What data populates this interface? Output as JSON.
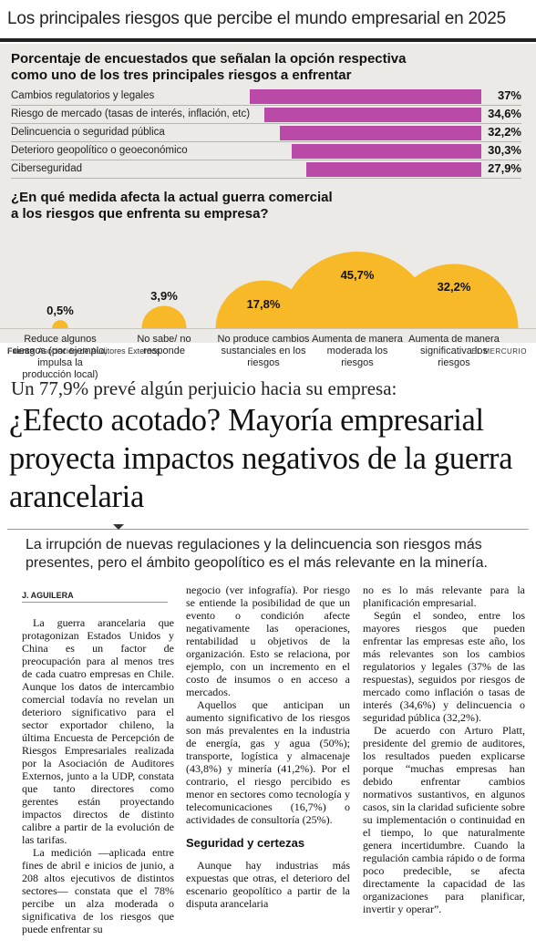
{
  "infographic": {
    "title": "Los principales riesgos que percibe el mundo empresarial en 2025",
    "bar_heading_line1": "Porcentaje de encuestados que señalan la opción respectiva",
    "bar_heading_line2": "como uno de los tres principales riesgos a enfrentar",
    "arc_heading_line1": "¿En qué medida afecta la actual guerra comercial",
    "arc_heading_line2": "a los riesgos que enfrenta su empresa?",
    "source_label": "Fuente",
    "source_text": "Asociación de Auditores Externos",
    "brand": "EL MERCURIO",
    "bar_color": "#b94aa8",
    "arc_color": "#f7b928"
  },
  "chart_data": [
    {
      "type": "bar",
      "orientation": "horizontal",
      "categories": [
        "Cambios regulatorios y legales",
        "Riesgo de mercado (tasas de interés, inflación, etc)",
        "Delincuencia o seguridad pública",
        "Deterioro geopolítico o geoeconómico",
        "Ciberseguridad"
      ],
      "values": [
        37,
        34.6,
        32.2,
        30.3,
        27.9
      ],
      "value_labels": [
        "37%",
        "34,6%",
        "32,2%",
        "30,3%",
        "27,9%"
      ]
    },
    {
      "type": "area",
      "shape": "semicircle",
      "categories": [
        "Reduce algunos riesgos (por ejemplo, impulsa la producción local)",
        "No sabe/ no responde",
        "No produce cambios sustanciales en los riesgos",
        "Aumenta de manera moderada los riesgos",
        "Aumenta de manera significativa los riesgos"
      ],
      "values": [
        0.5,
        3.9,
        17.8,
        45.7,
        32.2
      ],
      "value_labels": [
        "0,5%",
        "3,9%",
        "17,8%",
        "45,7%",
        "32,2%"
      ]
    }
  ],
  "article": {
    "kicker": "Un 77,9% prevé algún perjuicio hacia su empresa:",
    "headline": "¿Efecto acotado? Mayoría empresarial proyecta impactos negativos de la guerra arancelaria",
    "deck": "La irrupción de nuevas regulaciones y la delincuencia son riesgos más presentes, pero el ámbito geopolítico es el más relevante en la minería.",
    "byline": "J. AGUILERA",
    "col1": [
      "La guerra arancelaria que protagonizan Estados Unidos y China es un factor de preocupación para al menos tres de cada cuatro empresas en Chile. Aunque los datos de intercambio comercial todavía no revelan un deterioro significativo para el sector exportador chileno, la última Encuesta de Percepción de Riesgos Empresariales realizada por la Asociación de Auditores Externos, junto a la UDP, constata que tanto directores como gerentes están proyectando impactos directos de distinto calibre a partir de la evolución de las tarifas.",
      "La medición —aplicada entre fines de abril e inicios de junio, a 208 altos ejecutivos de distintos sectores— constata que el 78% percibe un alza moderada o significativa de los riesgos que puede enfrentar su"
    ],
    "col2_continued": "negocio (ver infografía). Por riesgo se entiende la posibilidad de que un evento o condición afecte negativamente las operaciones, rentabilidad u objetivos de la organización. Esto se relaciona, por ejemplo, con un incremento en el costo de insumos o en acceso a mercados.",
    "col2": [
      "Aquellos que anticipan un aumento significativo de los riesgos son más prevalentes en la industria de energía, gas y agua (50%); transporte, logística y almacenaje (43,8%) y minería (41,2%). Por el contrario, el riesgo percibido es menor en sectores como tecnología y telecomunicaciones (16,7%) o actividades de consultoría (25%)."
    ],
    "subhead": "Seguridad y certezas",
    "col2_after": "Aunque hay industrias más expuestas que otras, el deterioro del escenario geopolítico a partir de la disputa arancelaria",
    "col3_continued": "no es lo más relevante para la planificación empresarial.",
    "col3": [
      "Según el sondeo, entre los mayores riesgos que pueden enfrentar las empresas este año, los más relevantes son los cambios regulatorios y legales (37% de las respuestas), seguidos por riesgos de mercado como inflación o tasas de interés (34,6%) y delincuencia o seguridad pública (32,2%).",
      "De acuerdo con Arturo Platt, presidente del gremio de auditores, los resultados pueden explicarse porque “muchas empresas han debido enfrentar cambios normativos sustantivos, en algunos casos, sin la claridad suficiente sobre su implementación o continuidad en el tiempo, lo que naturalmente genera incertidumbre. Cuando la regulación cambia rápido o de forma poco predecible, se afecta directamente la capacidad de las organizaciones para planificar, invertir y operar”."
    ]
  }
}
